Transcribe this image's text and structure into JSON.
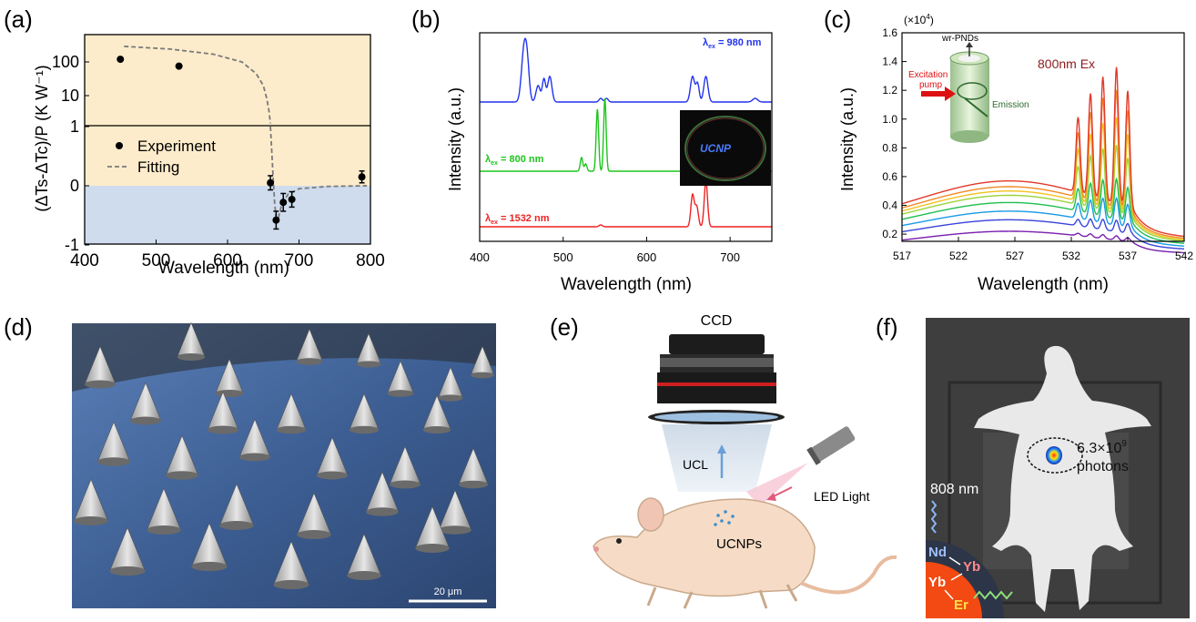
{
  "panels": {
    "a": "(a)",
    "b": "(b)",
    "c": "(c)",
    "d": "(d)",
    "e": "(e)",
    "f": "(f)"
  },
  "colors": {
    "upper_band": "#fdeccb",
    "lower_band": "#cfdcee",
    "b_blue": "#2233ee",
    "b_green": "#1dc51d",
    "b_red": "#ee2222",
    "sem_blue": "#4a6fa8",
    "mouse_skin": "#f6dcc6",
    "c_spectra": [
      "#7a1fb0",
      "#3a45d8",
      "#1a9be6",
      "#20bf4f",
      "#9bd43a",
      "#f2c21f",
      "#f08a25",
      "#e23a2b"
    ]
  },
  "chart_data": [
    {
      "panel": "a",
      "type": "scatter",
      "xlabel": "Wavelength (nm)",
      "ylabel": "(ΔTs-ΔTc)/P (K W⁻¹)",
      "xlim": [
        400,
        800
      ],
      "x_ticks": [
        "400",
        "500",
        "600",
        "700",
        "800"
      ],
      "y_ticks_upper": [
        "100",
        "10"
      ],
      "y_ticks_lower": [
        "1",
        "0",
        "-1"
      ],
      "legend": {
        "experiment": "Experiment",
        "fitting": "Fitting"
      },
      "series": [
        {
          "name": "Experiment",
          "points_log": [
            {
              "x": 450,
              "y": 120
            },
            {
              "x": 532,
              "y": 75
            }
          ],
          "points_lin": [
            {
              "x": 660,
              "y": 0.05,
              "err": 0.12
            },
            {
              "x": 668,
              "y": -0.58,
              "err": 0.15
            },
            {
              "x": 678,
              "y": -0.28,
              "err": 0.15
            },
            {
              "x": 690,
              "y": -0.23,
              "err": 0.13
            },
            {
              "x": 788,
              "y": 0.15,
              "err": 0.1
            }
          ]
        },
        {
          "name": "Fitting",
          "curve_log": [
            {
              "x": 455,
              "y": 290
            },
            {
              "x": 520,
              "y": 240
            },
            {
              "x": 580,
              "y": 170
            },
            {
              "x": 620,
              "y": 100
            },
            {
              "x": 640,
              "y": 45
            },
            {
              "x": 650,
              "y": 20
            },
            {
              "x": 655,
              "y": 8
            },
            {
              "x": 658,
              "y": 3.5
            },
            {
              "x": 660,
              "y": 1.5
            }
          ],
          "curve_lin": [
            {
              "x": 660,
              "y": 1.0
            },
            {
              "x": 662,
              "y": 0.55
            },
            {
              "x": 664,
              "y": 0.1
            },
            {
              "x": 666,
              "y": -0.3
            },
            {
              "x": 668,
              "y": -0.55
            },
            {
              "x": 671,
              "y": -0.55
            },
            {
              "x": 676,
              "y": -0.3
            },
            {
              "x": 685,
              "y": -0.14
            },
            {
              "x": 700,
              "y": -0.05
            },
            {
              "x": 740,
              "y": -0.01
            },
            {
              "x": 795,
              "y": 0.0
            }
          ]
        }
      ]
    },
    {
      "panel": "b",
      "type": "line",
      "xlabel": "Wavelength (nm)",
      "ylabel": "Intensity (a.u.)",
      "xlim": [
        400,
        750
      ],
      "x_ticks": [
        "400",
        "500",
        "600",
        "700"
      ],
      "series": [
        {
          "name": "λex = 980 nm",
          "label_main": "λ",
          "label_sub": "ex",
          "label_rest": " = 980 nm",
          "color_key": "b_blue"
        },
        {
          "name": "λex = 800 nm",
          "label_main": "λ",
          "label_sub": "ex",
          "label_rest": " = 800 nm",
          "color_key": "b_green"
        },
        {
          "name": "λex = 1532 nm",
          "label_main": "λ",
          "label_sub": "ex",
          "label_rest": " = 1532 nm",
          "color_key": "b_red"
        }
      ],
      "inset_text": "UCNP"
    },
    {
      "panel": "c",
      "type": "line",
      "xlabel": "Wavelength (nm)",
      "ylabel": "Intensity (a.u.)",
      "xlim": [
        517,
        542
      ],
      "ylim": [
        0.15,
        1.6
      ],
      "x_ticks": [
        "517",
        "522",
        "527",
        "532",
        "537",
        "542"
      ],
      "y_ticks": [
        "0.2",
        "0.4",
        "0.6",
        "0.8",
        "1.0",
        "1.2",
        "1.4",
        "1.6"
      ],
      "y_multiplier": "(×10",
      "y_multiplier_exp": "4",
      "y_multiplier_close": ")",
      "annotation": "800nm Ex",
      "inset": {
        "top": "wr-PNDs",
        "pump1": "Excitation",
        "pump2": "pump",
        "emission": "Emission"
      },
      "background_levels": [
        0.22,
        0.3,
        0.36,
        0.42,
        0.47,
        0.5,
        0.53,
        0.57
      ],
      "peak_levels": [
        0.25,
        0.38,
        0.55,
        0.7,
        0.95,
        1.15,
        1.35,
        1.52
      ]
    }
  ],
  "d": {
    "scalebar": "20 μm"
  },
  "e": {
    "ccd": "CCD",
    "ucl": "UCL",
    "led": "LED Light",
    "ucnps": "UCNPs"
  },
  "f": {
    "photons_value": "6.3×10",
    "photons_exp": "9",
    "photons_word": "photons",
    "nm": "808 nm",
    "nd": "Nd",
    "yb1": "Yb",
    "yb2": "Yb",
    "er": "Er"
  }
}
